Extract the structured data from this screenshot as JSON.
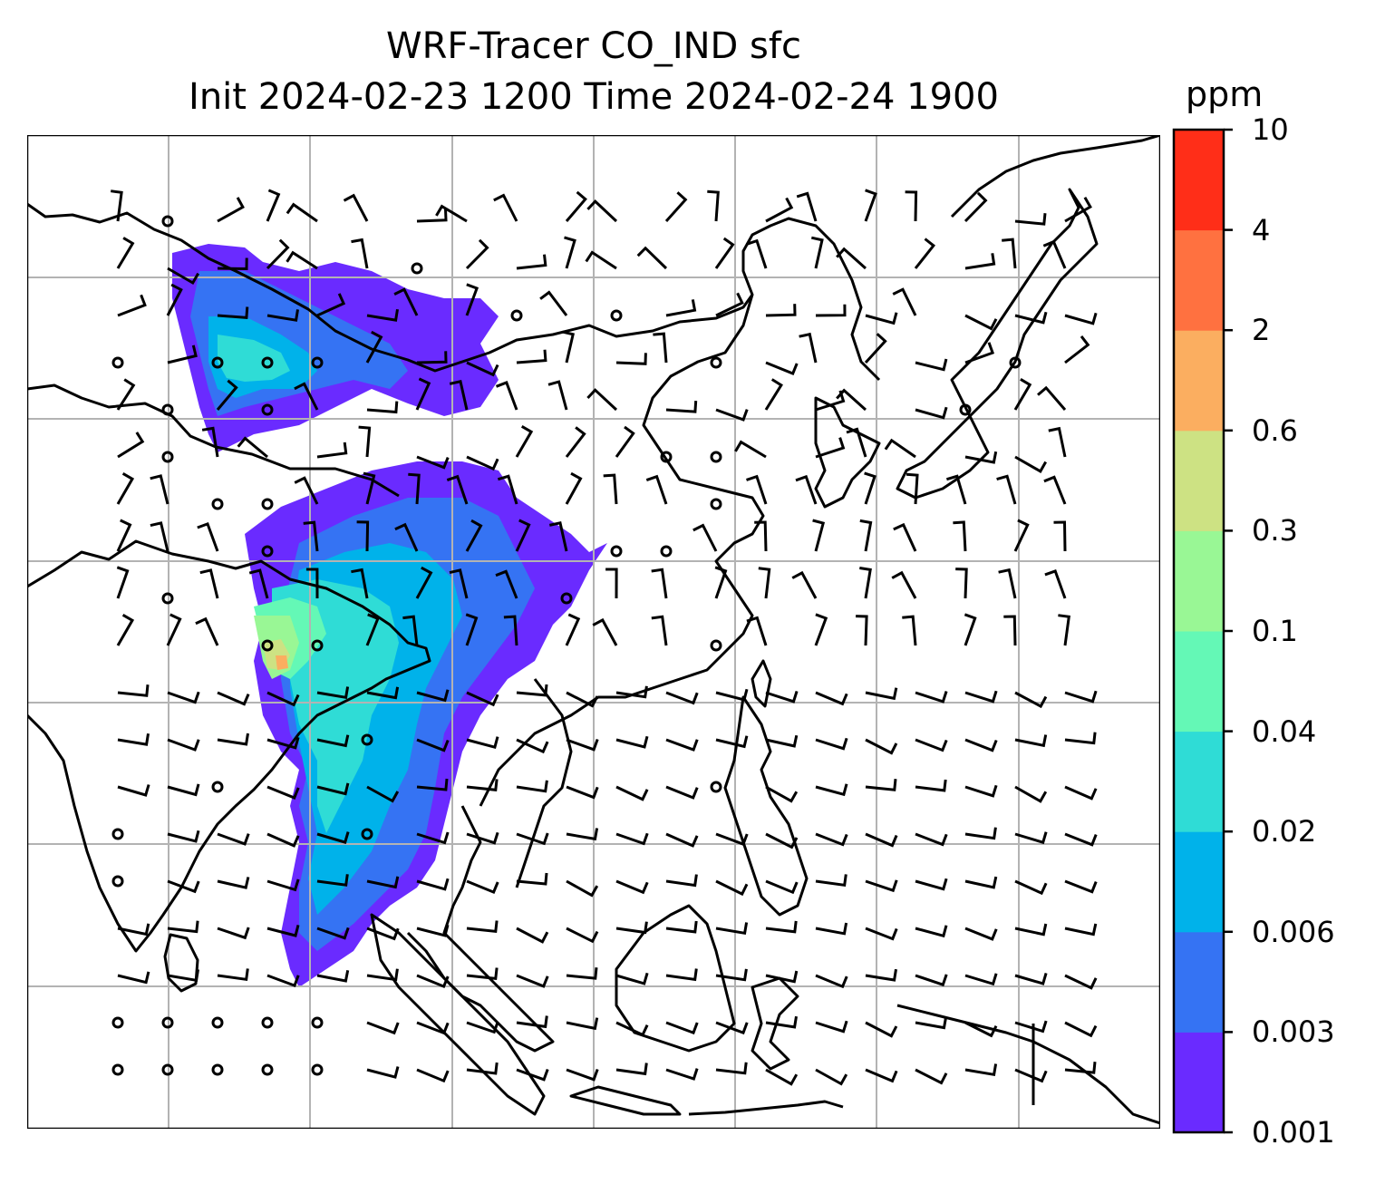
{
  "title": {
    "line1": "WRF-Tracer CO_IND sfc",
    "line2": "Init 2024-02-23 1200 Time 2024-02-24 1900"
  },
  "colorbar": {
    "unit": "ppm",
    "ticks": [
      "0.001",
      "0.003",
      "0.006",
      "0.02",
      "0.04",
      "0.1",
      "0.3",
      "0.6",
      "2",
      "4",
      "10"
    ],
    "colors": [
      "#6a2bff",
      "#3573f3",
      "#00b2ea",
      "#2fdcd6",
      "#64f8b6",
      "#99f795",
      "#cde283",
      "#fbae60",
      "#ff7140",
      "#ff2e18"
    ]
  },
  "map": {
    "background": "#ffffff",
    "gridline_color": "#b3b3b3",
    "coastline_color": "#000000",
    "barb_color": "#000000"
  }
}
